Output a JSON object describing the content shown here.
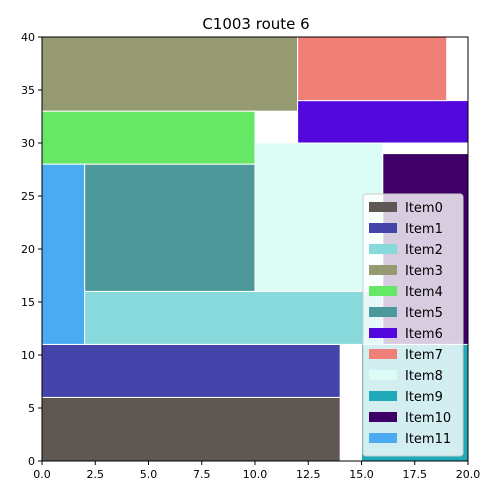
{
  "chart_data": {
    "type": "bar",
    "title": "C1003 route 6",
    "xlabel": "",
    "ylabel": "",
    "xlim": [
      0,
      20
    ],
    "ylim": [
      0,
      40
    ],
    "x_ticks": [
      "0.0",
      "2.5",
      "5.0",
      "7.5",
      "10.0",
      "12.5",
      "15.0",
      "17.5",
      "20.0"
    ],
    "y_ticks": [
      "0",
      "5",
      "10",
      "15",
      "20",
      "25",
      "30",
      "35",
      "40"
    ],
    "grid": false,
    "legend_position": "lower-right",
    "items": [
      {
        "name": "Item0",
        "x": 0,
        "y": 0,
        "width": 14,
        "height": 6,
        "color": "#5f5753"
      },
      {
        "name": "Item1",
        "x": 0,
        "y": 6,
        "width": 14,
        "height": 5,
        "color": "#4444aa"
      },
      {
        "name": "Item2",
        "x": 2,
        "y": 11,
        "width": 15,
        "height": 5,
        "color": "#88d9db"
      },
      {
        "name": "Item3",
        "x": 0,
        "y": 33,
        "width": 12,
        "height": 7,
        "color": "#959a70"
      },
      {
        "name": "Item4",
        "x": 0,
        "y": 28,
        "width": 10,
        "height": 5,
        "color": "#66e866"
      },
      {
        "name": "Item5",
        "x": 2,
        "y": 16,
        "width": 8,
        "height": 12,
        "color": "#4c989a"
      },
      {
        "name": "Item6",
        "x": 12,
        "y": 30,
        "width": 8,
        "height": 4,
        "color": "#5207dd"
      },
      {
        "name": "Item7",
        "x": 12,
        "y": 34,
        "width": 7,
        "height": 6,
        "color": "#f08077"
      },
      {
        "name": "Item8",
        "x": 10,
        "y": 16,
        "width": 6,
        "height": 14,
        "color": "#dcfcf6"
      },
      {
        "name": "Item9",
        "x": 15,
        "y": 0,
        "width": 5,
        "height": 11,
        "color": "#20a9b8"
      },
      {
        "name": "Item10",
        "x": 16,
        "y": 11,
        "width": 4,
        "height": 18,
        "color": "#3e0068"
      },
      {
        "name": "Item11",
        "x": 0,
        "y": 11,
        "width": 2,
        "height": 17,
        "color": "#4aaaf2"
      }
    ]
  }
}
